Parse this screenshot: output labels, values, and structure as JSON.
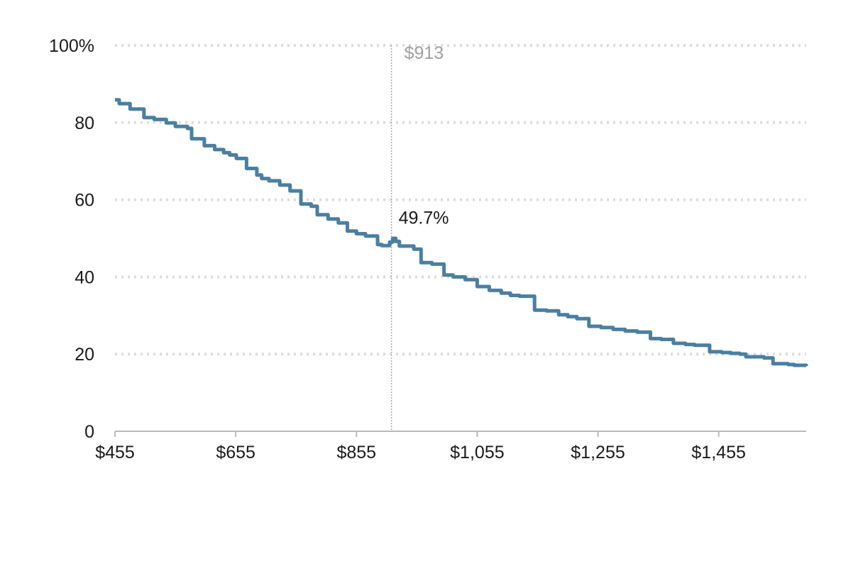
{
  "chart_data": {
    "type": "line",
    "title": "",
    "xlabel": "",
    "ylabel": "",
    "xlim": [
      455,
      1600
    ],
    "ylim": [
      0,
      100
    ],
    "grid": "horizontal-dotted",
    "colors": {
      "series": "#4a7fa0",
      "grid": "#dddddd",
      "axis": "#bbbbbb",
      "reference": "#aaaaaa",
      "reference_label": "#a0a0a0"
    },
    "x_ticks": [
      {
        "value": 455,
        "label": "$455"
      },
      {
        "value": 655,
        "label": "$655"
      },
      {
        "value": 855,
        "label": "$855"
      },
      {
        "value": 1055,
        "label": "$1,055"
      },
      {
        "value": 1255,
        "label": "$1,255"
      },
      {
        "value": 1455,
        "label": "$1,455"
      }
    ],
    "y_ticks": [
      {
        "value": 0,
        "label": "0"
      },
      {
        "value": 20,
        "label": "20"
      },
      {
        "value": 40,
        "label": "40"
      },
      {
        "value": 60,
        "label": "60"
      },
      {
        "value": 80,
        "label": "80"
      },
      {
        "value": 100,
        "label": "100%"
      }
    ],
    "reference_line": {
      "x": 913,
      "label": "$913"
    },
    "point_annotation": {
      "x": 913,
      "y": 49.7,
      "label": "49.7%"
    },
    "series": [
      {
        "style": "step",
        "points": [
          [
            455,
            85.9
          ],
          [
            462,
            84.9
          ],
          [
            480,
            83.5
          ],
          [
            503,
            81.3
          ],
          [
            520,
            80.8
          ],
          [
            540,
            79.9
          ],
          [
            555,
            79.0
          ],
          [
            575,
            78.5
          ],
          [
            582,
            75.8
          ],
          [
            603,
            74.0
          ],
          [
            620,
            73.0
          ],
          [
            635,
            72.2
          ],
          [
            645,
            71.6
          ],
          [
            656,
            70.7
          ],
          [
            673,
            68.1
          ],
          [
            690,
            66.4
          ],
          [
            698,
            65.5
          ],
          [
            710,
            64.9
          ],
          [
            728,
            63.8
          ],
          [
            745,
            62.3
          ],
          [
            763,
            58.9
          ],
          [
            780,
            58.3
          ],
          [
            790,
            56.1
          ],
          [
            808,
            55.0
          ],
          [
            825,
            54.0
          ],
          [
            840,
            51.9
          ],
          [
            855,
            51.2
          ],
          [
            870,
            50.6
          ],
          [
            890,
            48.4
          ],
          [
            897,
            48.1
          ],
          [
            910,
            49.0
          ],
          [
            915,
            50.0
          ],
          [
            920,
            49.2
          ],
          [
            926,
            48.0
          ],
          [
            950,
            47.2
          ],
          [
            962,
            43.7
          ],
          [
            980,
            43.3
          ],
          [
            1000,
            40.5
          ],
          [
            1015,
            40.0
          ],
          [
            1035,
            39.3
          ],
          [
            1055,
            37.5
          ],
          [
            1075,
            36.5
          ],
          [
            1095,
            35.8
          ],
          [
            1110,
            35.2
          ],
          [
            1125,
            35.0
          ],
          [
            1150,
            31.4
          ],
          [
            1170,
            31.2
          ],
          [
            1190,
            30.2
          ],
          [
            1205,
            29.7
          ],
          [
            1220,
            29.2
          ],
          [
            1240,
            27.2
          ],
          [
            1260,
            26.9
          ],
          [
            1280,
            26.4
          ],
          [
            1300,
            26.0
          ],
          [
            1320,
            25.7
          ],
          [
            1342,
            24.0
          ],
          [
            1360,
            23.8
          ],
          [
            1380,
            22.8
          ],
          [
            1400,
            22.5
          ],
          [
            1415,
            22.3
          ],
          [
            1440,
            20.6
          ],
          [
            1460,
            20.4
          ],
          [
            1475,
            20.2
          ],
          [
            1490,
            20.0
          ],
          [
            1500,
            19.3
          ],
          [
            1530,
            19.0
          ],
          [
            1545,
            17.5
          ],
          [
            1570,
            17.3
          ],
          [
            1580,
            17.1
          ],
          [
            1600,
            16.9
          ]
        ]
      }
    ]
  }
}
